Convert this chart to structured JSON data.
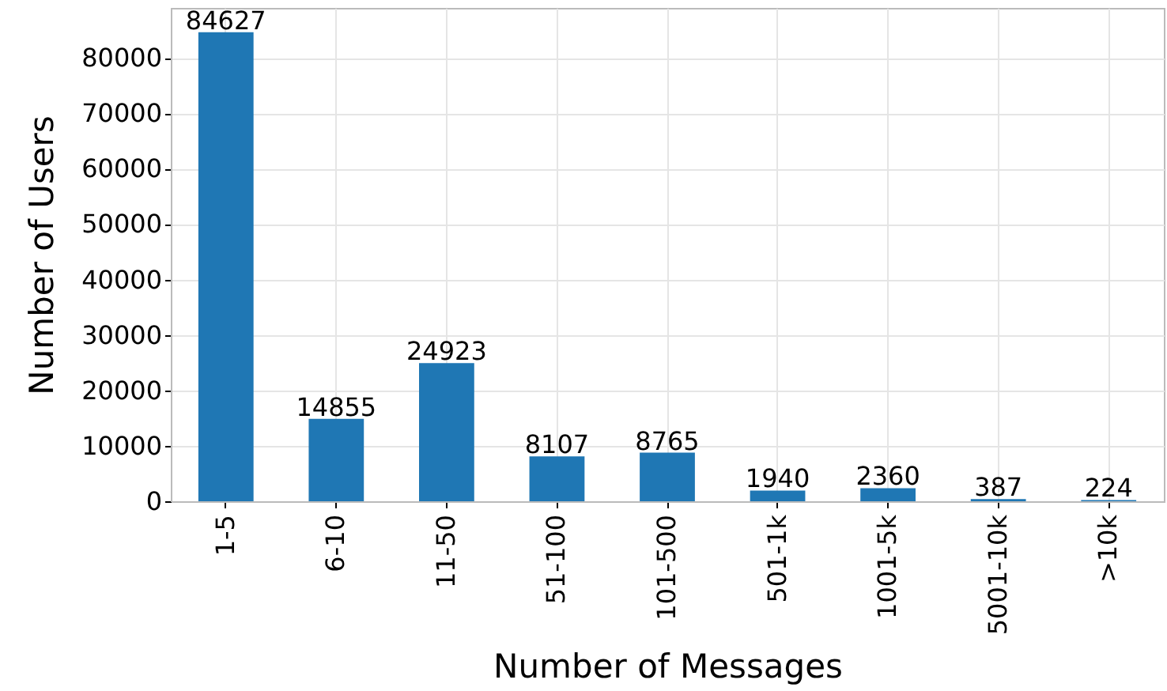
{
  "chart_data": {
    "type": "bar",
    "xlabel": "Number of Messages",
    "ylabel": "Number of Users",
    "categories": [
      "1-5",
      "6-10",
      "11-50",
      "51-100",
      "101-500",
      "501-1k",
      "1001-5k",
      "5001-10k",
      ">10k"
    ],
    "values": [
      84627,
      14855,
      24923,
      8107,
      8765,
      1940,
      2360,
      387,
      224
    ],
    "color": "#1f77b4",
    "ylim": [
      0,
      89000
    ],
    "yticks": [
      0,
      10000,
      20000,
      30000,
      40000,
      50000,
      60000,
      70000,
      80000
    ],
    "grid": true,
    "data_labels": true
  }
}
